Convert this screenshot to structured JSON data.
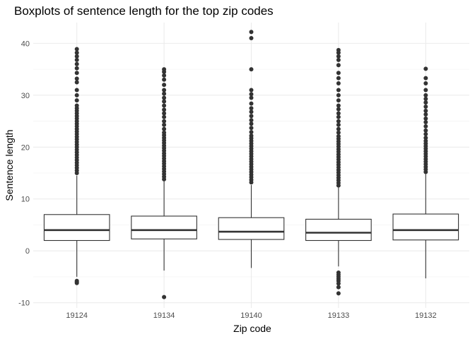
{
  "chart_data": {
    "type": "boxplot",
    "title": "Boxplots of sentence length for the top zip codes",
    "xlabel": "Zip code",
    "ylabel": "Sentence length",
    "ylim": [
      -11,
      44
    ],
    "yticks": [
      -10,
      0,
      10,
      20,
      30,
      40
    ],
    "grid": true,
    "legend": "none",
    "colors": {
      "box_stroke": "#333333",
      "point": "#333333",
      "grid_major": "#ebebeb",
      "grid_minor": "#f5f5f5",
      "background": "#ffffff"
    },
    "categories": [
      "19124",
      "19134",
      "19140",
      "19133",
      "19132"
    ],
    "boxes": [
      {
        "category": "19124",
        "lower_whisker": -5.0,
        "q1": 2.0,
        "median": 4.0,
        "q3": 7.0,
        "upper_whisker": 14.5,
        "outliers": [
          -5.8,
          -6.0,
          -6.2,
          15.0,
          15.5,
          16.0,
          16.5,
          17.0,
          17.5,
          18.0,
          18.5,
          19.0,
          19.5,
          20.0,
          20.5,
          21.0,
          21.5,
          22.0,
          22.5,
          23.0,
          23.5,
          24.0,
          24.5,
          25.0,
          25.5,
          26.0,
          26.5,
          27.0,
          27.5,
          28.0,
          29.0,
          30.0,
          31.0,
          32.5,
          33.2,
          34.3,
          35.2,
          36.0,
          36.8,
          37.5,
          38.2,
          38.9
        ]
      },
      {
        "category": "19134",
        "lower_whisker": -3.8,
        "q1": 2.3,
        "median": 4.0,
        "q3": 6.7,
        "upper_whisker": 13.4,
        "outliers": [
          -8.9,
          13.8,
          14.3,
          14.8,
          15.3,
          15.8,
          16.3,
          16.8,
          17.3,
          17.8,
          18.3,
          18.8,
          19.3,
          19.8,
          20.3,
          20.8,
          21.3,
          21.8,
          22.3,
          22.8,
          23.5,
          24.3,
          25.0,
          25.8,
          26.5,
          27.2,
          28.0,
          28.8,
          29.5,
          30.3,
          31.0,
          32.0,
          33.0,
          33.8,
          34.5,
          35.0
        ]
      },
      {
        "category": "19140",
        "lower_whisker": -3.3,
        "q1": 2.2,
        "median": 3.7,
        "q3": 6.4,
        "upper_whisker": 12.7,
        "outliers": [
          13.2,
          13.7,
          14.2,
          14.7,
          15.2,
          15.7,
          16.2,
          16.7,
          17.2,
          17.7,
          18.2,
          18.7,
          19.2,
          19.7,
          20.2,
          20.7,
          21.2,
          21.7,
          22.2,
          22.9,
          23.7,
          24.5,
          25.2,
          26.0,
          26.8,
          27.5,
          28.4,
          29.5,
          30.2,
          31.0,
          35.0,
          41.0,
          42.2
        ]
      },
      {
        "category": "19133",
        "lower_whisker": -3.0,
        "q1": 2.0,
        "median": 3.5,
        "q3": 6.1,
        "upper_whisker": 12.2,
        "outliers": [
          -4.2,
          -4.6,
          -5.0,
          -5.4,
          -5.8,
          -6.3,
          -7.0,
          -8.2,
          12.6,
          13.1,
          13.6,
          14.1,
          14.6,
          15.1,
          15.6,
          16.1,
          16.6,
          17.1,
          17.6,
          18.1,
          18.6,
          19.1,
          19.6,
          20.1,
          20.6,
          21.1,
          21.6,
          22.1,
          22.8,
          23.5,
          24.3,
          25.0,
          25.8,
          26.5,
          27.3,
          28.0,
          29.0,
          30.0,
          31.0,
          32.3,
          33.3,
          34.3,
          35.8,
          36.8,
          37.5,
          38.2,
          38.7
        ]
      },
      {
        "category": "19132",
        "lower_whisker": -5.3,
        "q1": 2.1,
        "median": 4.0,
        "q3": 7.1,
        "upper_whisker": 14.8,
        "outliers": [
          15.2,
          15.7,
          16.2,
          16.7,
          17.2,
          17.7,
          18.2,
          18.7,
          19.2,
          19.7,
          20.2,
          20.7,
          21.2,
          21.8,
          22.5,
          23.2,
          24.0,
          24.8,
          25.5,
          26.3,
          27.0,
          27.8,
          28.6,
          29.3,
          30.0,
          31.0,
          32.3,
          33.3,
          35.1
        ]
      }
    ]
  }
}
